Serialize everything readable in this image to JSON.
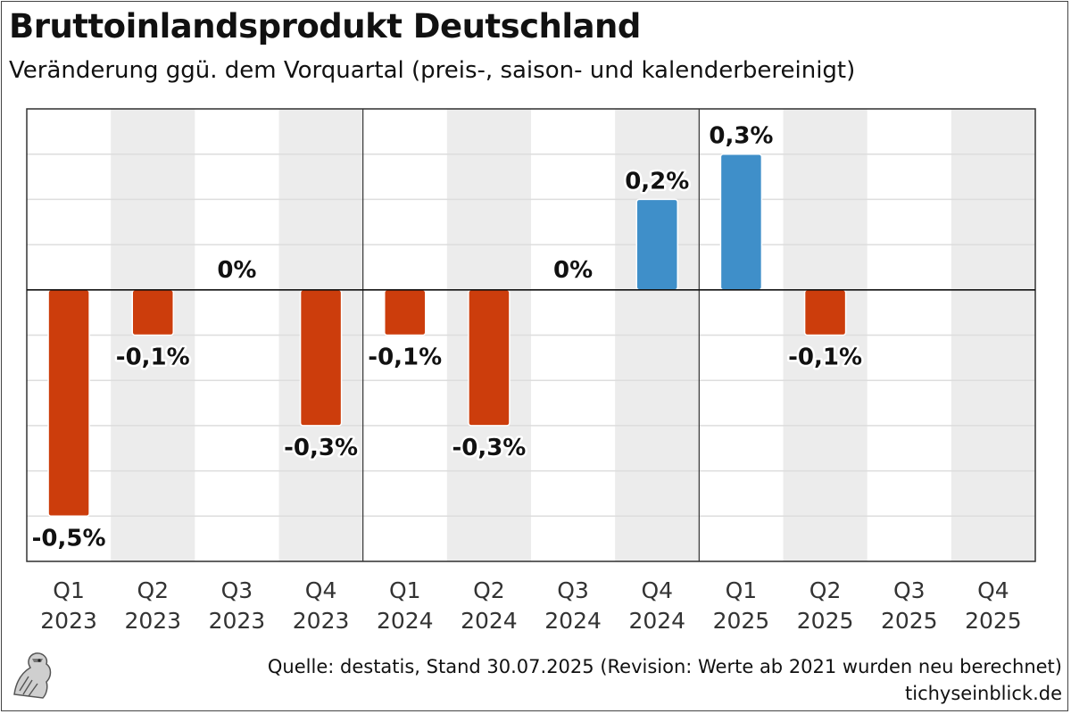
{
  "header": {
    "title": "Bruttoinlandsprodukt Deutschland",
    "subtitle": "Veränderung ggü. dem Vorquartal (preis-, saison- und kalenderbereinigt)"
  },
  "footer": {
    "source": "Quelle: destatis, Stand 30.07.2025 (Revision: Werte ab 2021 wurden neu berechnet)",
    "site": "tichyseinblick.de"
  },
  "colors": {
    "negative": "#cc3d0c",
    "positive": "#3f8fc9",
    "band": "#ececec"
  },
  "chart_data": {
    "type": "bar",
    "title": "Bruttoinlandsprodukt Deutschland",
    "subtitle": "Veränderung ggü. dem Vorquartal (preis-, saison- und kalenderbereinigt)",
    "categories": [
      [
        "Q1",
        "2023"
      ],
      [
        "Q2",
        "2023"
      ],
      [
        "Q3",
        "2023"
      ],
      [
        "Q4",
        "2023"
      ],
      [
        "Q1",
        "2024"
      ],
      [
        "Q2",
        "2024"
      ],
      [
        "Q3",
        "2024"
      ],
      [
        "Q4",
        "2024"
      ],
      [
        "Q1",
        "2025"
      ],
      [
        "Q2",
        "2025"
      ],
      [
        "Q3",
        "2025"
      ],
      [
        "Q4",
        "2025"
      ]
    ],
    "values": [
      -0.5,
      -0.1,
      0,
      -0.3,
      -0.1,
      -0.3,
      0,
      0.2,
      0.3,
      -0.1,
      null,
      null
    ],
    "labels": [
      "-0,5%",
      "-0,1%",
      "0%",
      "-0,3%",
      "-0,1%",
      "-0,3%",
      "0%",
      "0,2%",
      "0,3%",
      "-0,1%",
      "",
      ""
    ],
    "ylim": [
      -0.6,
      0.4
    ],
    "unit": "%",
    "grid": true,
    "xlabel": "",
    "ylabel": ""
  }
}
